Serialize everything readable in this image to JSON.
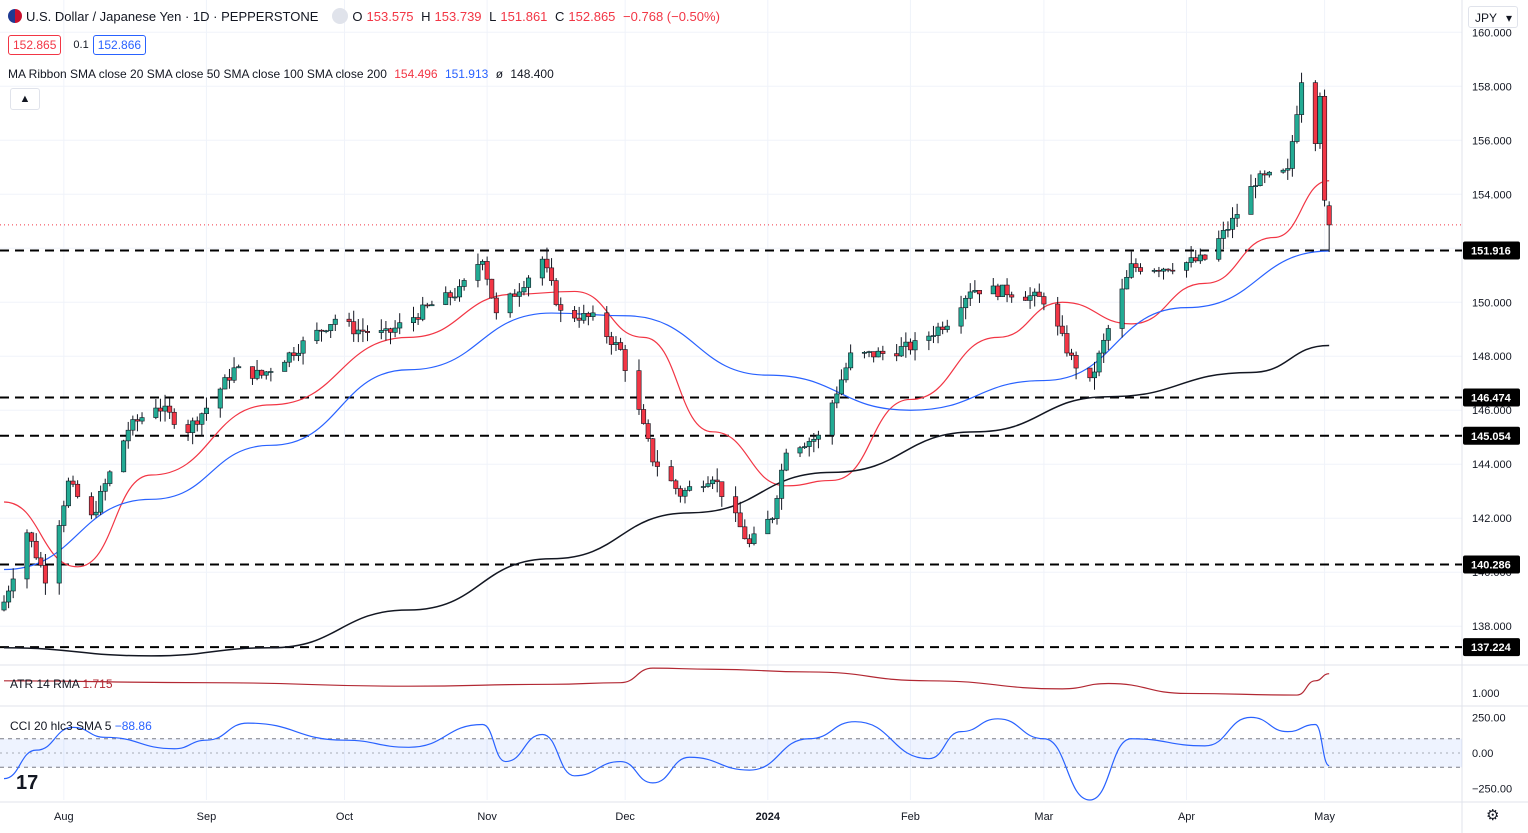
{
  "header": {
    "symbol_title": "U.S. Dollar / Japanese Yen · 1D · PEPPERSTONE",
    "ohlc": [
      {
        "label": "O",
        "value": "153.575"
      },
      {
        "label": "H",
        "value": "153.739"
      },
      {
        "label": "L",
        "value": "151.861"
      },
      {
        "label": "C",
        "value": "152.865"
      }
    ],
    "change": "−0.768 (−0.50%)",
    "sell_price": "152.865",
    "spread": "0.1",
    "buy_price": "152.866",
    "ma_label": "MA Ribbon SMA close 20 SMA close 50 SMA close 100 SMA close 200",
    "ma_values": [
      {
        "value": "154.496",
        "color": "#f23645"
      },
      {
        "value": "151.913",
        "color": "#2962ff"
      },
      {
        "value": "ø",
        "color": "#131722"
      },
      {
        "value": "148.400",
        "color": "#131722"
      }
    ],
    "collapse_icon": "chevron-up-icon",
    "currency": "JPY"
  },
  "indicators": {
    "atr_label": "ATR 14 RMA",
    "atr_value": "1.715",
    "cci_label": "CCI 20 hlc3 SMA 5",
    "cci_value": "−88.86"
  },
  "chart_data": {
    "type": "candlestick",
    "title": "U.S. Dollar / Japanese Yen · 1D · PEPPERSTONE",
    "ylim": [
      136.6,
      160.9
    ],
    "y_ticks": [
      "138.000",
      "140.000",
      "142.000",
      "144.000",
      "146.000",
      "148.000",
      "150.000",
      "152.000",
      "154.000",
      "156.000",
      "158.000",
      "160.000"
    ],
    "x_ticks": [
      {
        "label": "Aug",
        "date": "2023-08-01"
      },
      {
        "label": "Sep",
        "date": "2023-09-01"
      },
      {
        "label": "Oct",
        "date": "2023-10-01"
      },
      {
        "label": "Nov",
        "date": "2023-11-01"
      },
      {
        "label": "Dec",
        "date": "2023-12-01"
      },
      {
        "label": "2024",
        "date": "2024-01-01",
        "bold": true
      },
      {
        "label": "Feb",
        "date": "2024-02-01"
      },
      {
        "label": "Mar",
        "date": "2024-03-01"
      },
      {
        "label": "Apr",
        "date": "2024-04-01"
      },
      {
        "label": "May",
        "date": "2024-05-01"
      }
    ],
    "x_range": [
      "2023-07-19",
      "2024-05-30"
    ],
    "last_candle": {
      "date": "2024-05-02",
      "open": 153.575,
      "high": 153.739,
      "low": 151.861,
      "close": 152.865
    },
    "current_price": 152.865,
    "horizontal_levels": [
      {
        "value": 151.916,
        "label": "151.916"
      },
      {
        "value": 146.474,
        "label": "146.474"
      },
      {
        "value": 145.054,
        "label": "145.054"
      },
      {
        "value": 140.286,
        "label": "140.286"
      },
      {
        "value": 137.224,
        "label": "137.224"
      }
    ],
    "candle_anchors": [
      {
        "date": "2023-07-19",
        "close": 138.9
      },
      {
        "date": "2023-07-24",
        "close": 141.5
      },
      {
        "date": "2023-07-28",
        "close": 139.8
      },
      {
        "date": "2023-08-02",
        "close": 143.3
      },
      {
        "date": "2023-08-07",
        "close": 142.0
      },
      {
        "date": "2023-08-15",
        "close": 145.3
      },
      {
        "date": "2023-08-21",
        "close": 146.2
      },
      {
        "date": "2023-08-28",
        "close": 145.3
      },
      {
        "date": "2023-09-01",
        "close": 146.1
      },
      {
        "date": "2023-09-07",
        "close": 147.5
      },
      {
        "date": "2023-09-13",
        "close": 147.3
      },
      {
        "date": "2023-09-20",
        "close": 148.2
      },
      {
        "date": "2023-09-29",
        "close": 149.4
      },
      {
        "date": "2023-10-03",
        "close": 149.0
      },
      {
        "date": "2023-10-10",
        "close": 148.8
      },
      {
        "date": "2023-10-20",
        "close": 149.9
      },
      {
        "date": "2023-10-26",
        "close": 150.4
      },
      {
        "date": "2023-10-31",
        "close": 151.7
      },
      {
        "date": "2023-11-03",
        "close": 149.5
      },
      {
        "date": "2023-11-13",
        "close": 151.6
      },
      {
        "date": "2023-11-17",
        "close": 149.6
      },
      {
        "date": "2023-11-24",
        "close": 149.4
      },
      {
        "date": "2023-11-30",
        "close": 148.2
      },
      {
        "date": "2023-12-07",
        "close": 144.2
      },
      {
        "date": "2023-12-13",
        "close": 142.9
      },
      {
        "date": "2023-12-20",
        "close": 143.6
      },
      {
        "date": "2023-12-28",
        "close": 141.0
      },
      {
        "date": "2024-01-02",
        "close": 142.1
      },
      {
        "date": "2024-01-05",
        "close": 144.6
      },
      {
        "date": "2024-01-12",
        "close": 145.0
      },
      {
        "date": "2024-01-19",
        "close": 148.0
      },
      {
        "date": "2024-01-26",
        "close": 148.1
      },
      {
        "date": "2024-02-02",
        "close": 148.4
      },
      {
        "date": "2024-02-09",
        "close": 149.3
      },
      {
        "date": "2024-02-14",
        "close": 150.5
      },
      {
        "date": "2024-02-22",
        "close": 150.4
      },
      {
        "date": "2024-03-01",
        "close": 150.1
      },
      {
        "date": "2024-03-07",
        "close": 147.9
      },
      {
        "date": "2024-03-11",
        "close": 147.0
      },
      {
        "date": "2024-03-15",
        "close": 149.0
      },
      {
        "date": "2024-03-20",
        "close": 151.3
      },
      {
        "date": "2024-03-27",
        "close": 151.3
      },
      {
        "date": "2024-04-05",
        "close": 151.6
      },
      {
        "date": "2024-04-11",
        "close": 153.0
      },
      {
        "date": "2024-04-16",
        "close": 154.5
      },
      {
        "date": "2024-04-23",
        "close": 154.8
      },
      {
        "date": "2024-04-26",
        "close": 158.3
      },
      {
        "date": "2024-04-29",
        "close": 156.1
      },
      {
        "date": "2024-04-30",
        "close": 157.8
      },
      {
        "date": "2024-05-01",
        "close": 153.6
      },
      {
        "date": "2024-05-02",
        "close": 152.865
      }
    ],
    "series": [
      {
        "name": "SMA 20",
        "color": "#f23645",
        "points": [
          {
            "date": "2023-07-19",
            "value": 142.6
          },
          {
            "date": "2023-08-04",
            "value": 140.2
          },
          {
            "date": "2023-08-20",
            "value": 143.6
          },
          {
            "date": "2023-09-15",
            "value": 146.2
          },
          {
            "date": "2023-10-15",
            "value": 148.7
          },
          {
            "date": "2023-11-07",
            "value": 150.3
          },
          {
            "date": "2023-11-20",
            "value": 150.4
          },
          {
            "date": "2023-12-05",
            "value": 148.7
          },
          {
            "date": "2023-12-20",
            "value": 145.2
          },
          {
            "date": "2024-01-05",
            "value": 143.2
          },
          {
            "date": "2024-01-15",
            "value": 143.4
          },
          {
            "date": "2024-02-01",
            "value": 146.4
          },
          {
            "date": "2024-02-20",
            "value": 148.7
          },
          {
            "date": "2024-03-05",
            "value": 150.0
          },
          {
            "date": "2024-03-20",
            "value": 149.2
          },
          {
            "date": "2024-04-05",
            "value": 150.7
          },
          {
            "date": "2024-04-20",
            "value": 152.4
          },
          {
            "date": "2024-05-02",
            "value": 154.5
          }
        ]
      },
      {
        "name": "SMA 50",
        "color": "#2962ff",
        "points": [
          {
            "date": "2023-07-19",
            "value": 140.1
          },
          {
            "date": "2023-08-20",
            "value": 142.7
          },
          {
            "date": "2023-09-15",
            "value": 144.7
          },
          {
            "date": "2023-10-15",
            "value": 147.5
          },
          {
            "date": "2023-11-15",
            "value": 149.6
          },
          {
            "date": "2023-12-01",
            "value": 149.5
          },
          {
            "date": "2024-01-01",
            "value": 147.3
          },
          {
            "date": "2024-02-01",
            "value": 146.0
          },
          {
            "date": "2024-03-01",
            "value": 147.1
          },
          {
            "date": "2024-04-01",
            "value": 149.8
          },
          {
            "date": "2024-05-02",
            "value": 151.9
          }
        ]
      },
      {
        "name": "SMA 200",
        "color": "#131722",
        "points": [
          {
            "date": "2023-07-19",
            "value": 137.2
          },
          {
            "date": "2023-08-20",
            "value": 136.9
          },
          {
            "date": "2023-09-15",
            "value": 137.2
          },
          {
            "date": "2023-10-15",
            "value": 138.6
          },
          {
            "date": "2023-11-15",
            "value": 140.5
          },
          {
            "date": "2023-12-15",
            "value": 142.2
          },
          {
            "date": "2024-01-15",
            "value": 143.7
          },
          {
            "date": "2024-02-15",
            "value": 145.2
          },
          {
            "date": "2024-03-15",
            "value": 146.5
          },
          {
            "date": "2024-04-15",
            "value": 147.4
          },
          {
            "date": "2024-05-02",
            "value": 148.4
          }
        ]
      }
    ],
    "atr": {
      "name": "ATR 14 RMA",
      "color": "#b22833",
      "tick": "1.000",
      "ylim": [
        0.55,
        2.0
      ],
      "points": [
        {
          "date": "2023-07-19",
          "value": 1.45
        },
        {
          "date": "2023-09-01",
          "value": 1.38
        },
        {
          "date": "2023-10-15",
          "value": 1.25
        },
        {
          "date": "2023-11-15",
          "value": 1.32
        },
        {
          "date": "2023-11-30",
          "value": 1.38
        },
        {
          "date": "2023-12-07",
          "value": 1.92
        },
        {
          "date": "2023-12-20",
          "value": 1.88
        },
        {
          "date": "2024-01-10",
          "value": 1.78
        },
        {
          "date": "2024-02-05",
          "value": 1.45
        },
        {
          "date": "2024-03-05",
          "value": 1.15
        },
        {
          "date": "2024-03-15",
          "value": 1.35
        },
        {
          "date": "2024-04-01",
          "value": 0.98
        },
        {
          "date": "2024-04-25",
          "value": 0.92
        },
        {
          "date": "2024-04-29",
          "value": 1.45
        },
        {
          "date": "2024-05-02",
          "value": 1.715
        }
      ]
    },
    "cci": {
      "name": "CCI 20 hlc3 SMA 5",
      "color": "#2962ff",
      "ylim": [
        -330,
        330
      ],
      "band": [
        -100,
        100
      ],
      "ticks": [
        {
          "value": 250,
          "label": "250.00"
        },
        {
          "value": 0,
          "label": "0.00"
        },
        {
          "value": -250,
          "label": "−250.00"
        }
      ],
      "points": [
        {
          "date": "2023-07-19",
          "value": -180
        },
        {
          "date": "2023-07-26",
          "value": 20
        },
        {
          "date": "2023-08-03",
          "value": 180
        },
        {
          "date": "2023-08-10",
          "value": 110
        },
        {
          "date": "2023-08-25",
          "value": 30
        },
        {
          "date": "2023-09-01",
          "value": 90
        },
        {
          "date": "2023-09-10",
          "value": 210
        },
        {
          "date": "2023-10-01",
          "value": 90
        },
        {
          "date": "2023-10-15",
          "value": 40
        },
        {
          "date": "2023-10-31",
          "value": 200
        },
        {
          "date": "2023-11-05",
          "value": -60
        },
        {
          "date": "2023-11-13",
          "value": 130
        },
        {
          "date": "2023-11-20",
          "value": -160
        },
        {
          "date": "2023-11-30",
          "value": -60
        },
        {
          "date": "2023-12-07",
          "value": -210
        },
        {
          "date": "2023-12-15",
          "value": -30
        },
        {
          "date": "2023-12-28",
          "value": -120
        },
        {
          "date": "2024-01-10",
          "value": 100
        },
        {
          "date": "2024-01-20",
          "value": 220
        },
        {
          "date": "2024-02-05",
          "value": -40
        },
        {
          "date": "2024-02-12",
          "value": 150
        },
        {
          "date": "2024-02-20",
          "value": 240
        },
        {
          "date": "2024-03-01",
          "value": 100
        },
        {
          "date": "2024-03-11",
          "value": -330
        },
        {
          "date": "2024-03-20",
          "value": 100
        },
        {
          "date": "2024-04-05",
          "value": 50
        },
        {
          "date": "2024-04-15",
          "value": 250
        },
        {
          "date": "2024-04-23",
          "value": 150
        },
        {
          "date": "2024-04-29",
          "value": 200
        },
        {
          "date": "2024-05-02",
          "value": -88.86
        }
      ]
    }
  }
}
